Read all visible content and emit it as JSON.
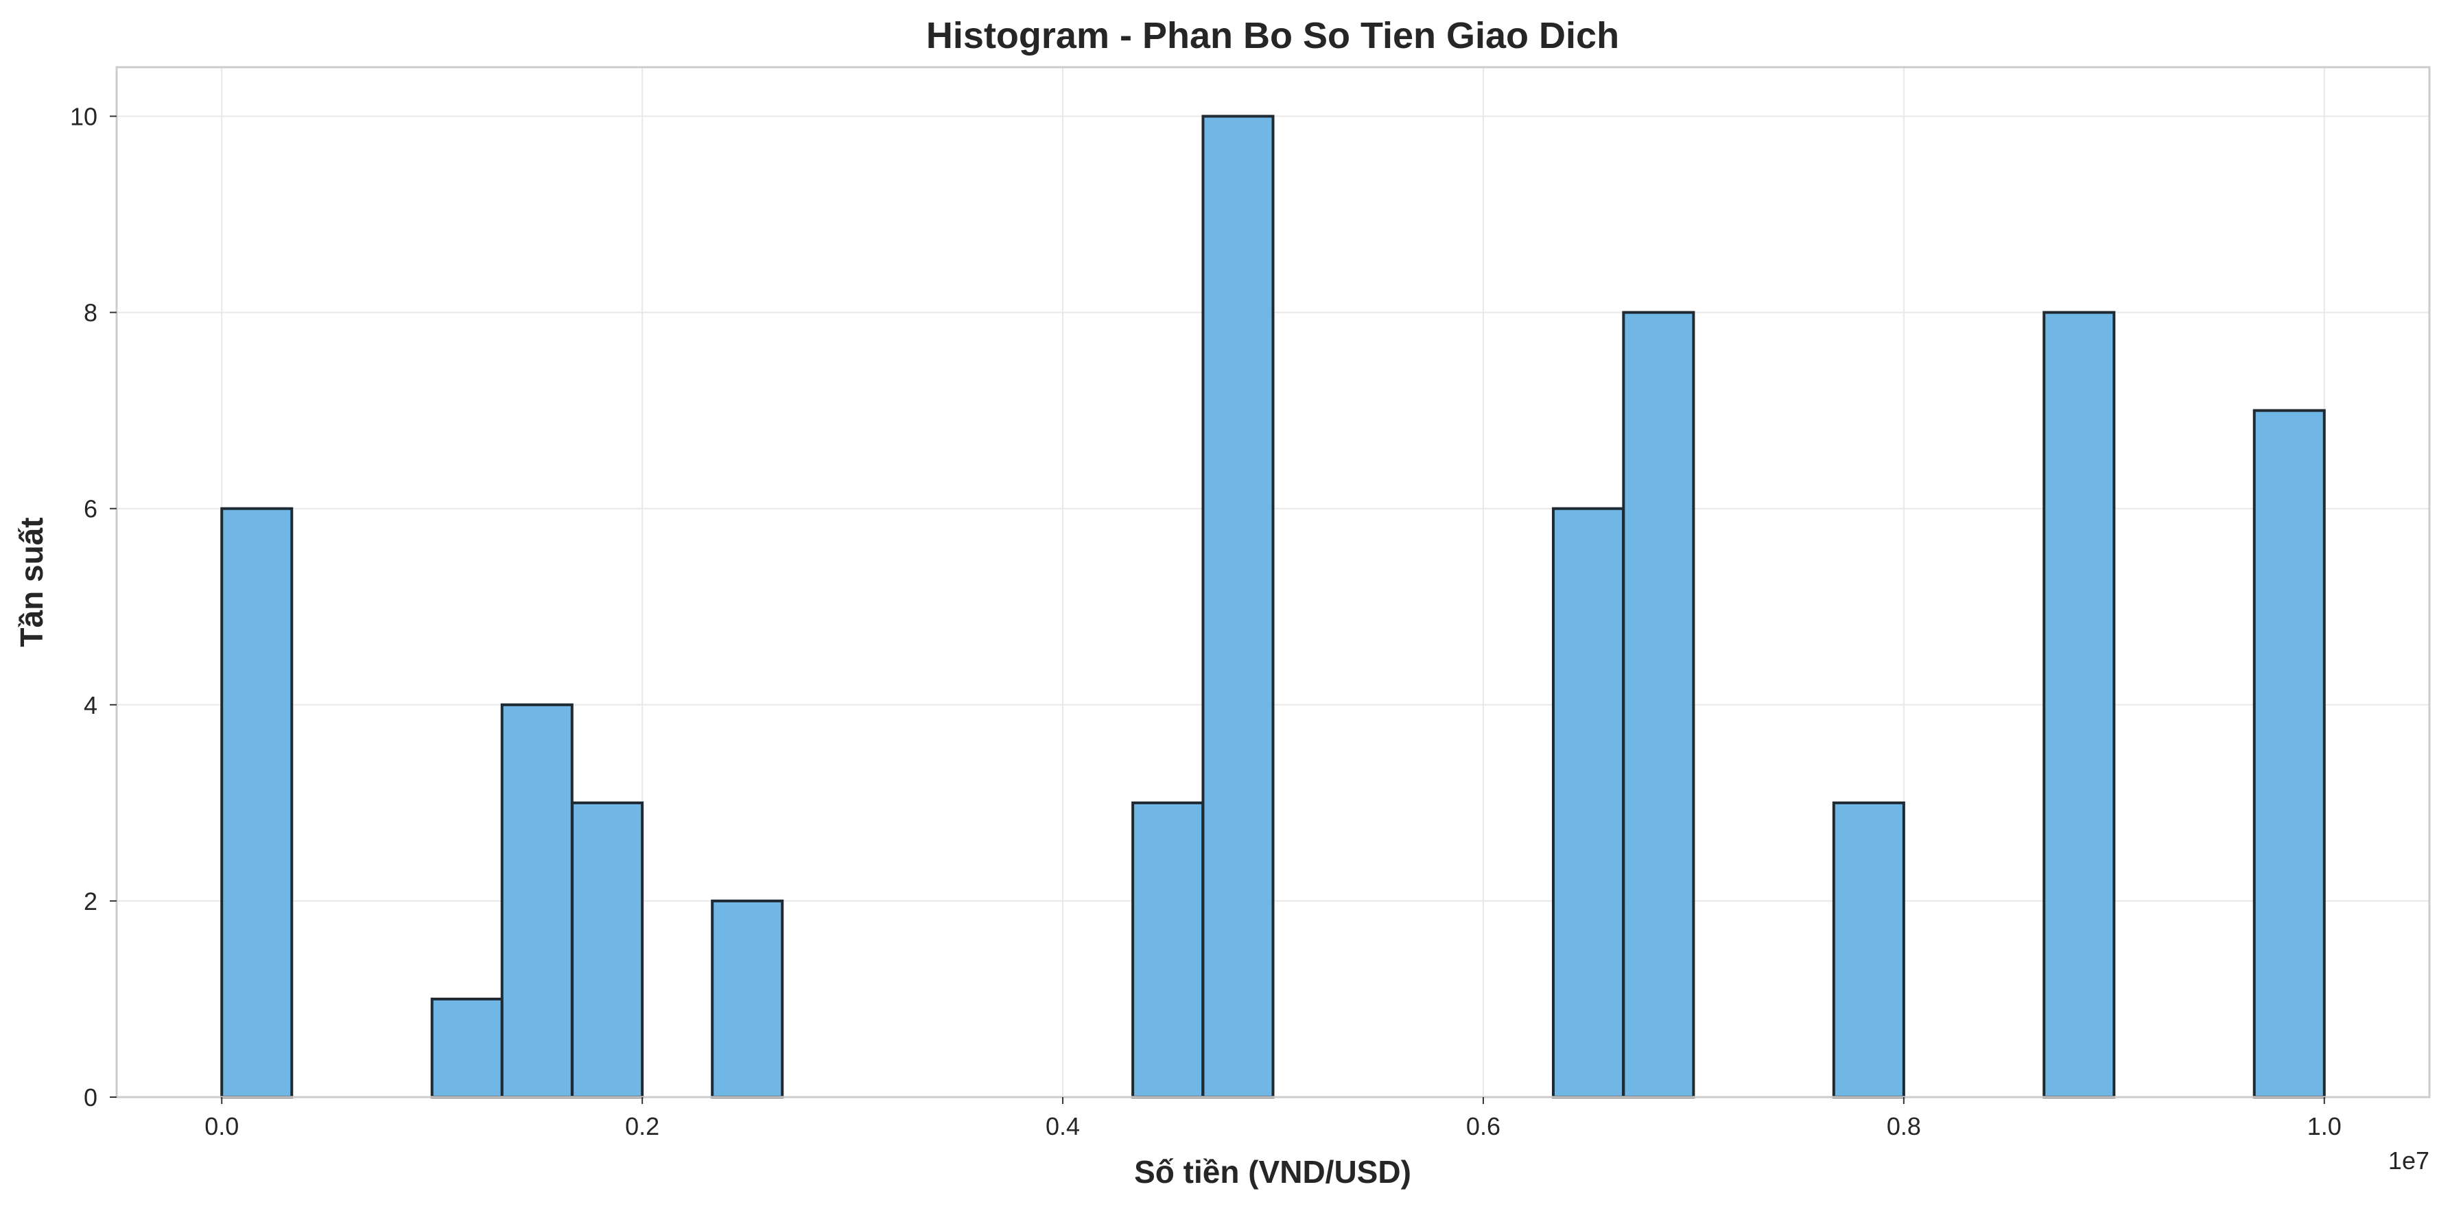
{
  "chart_data": {
    "type": "bar",
    "title": "Histogram - Phan Bo So Tien Giao Dich",
    "xlabel": "Số tiền (VND/USD)",
    "ylabel": "Tần suất",
    "x_offset_label": "1e7",
    "xlim": [
      -0.05,
      1.05
    ],
    "ylim": [
      0,
      10.5
    ],
    "x_ticks": [
      0.0,
      0.2,
      0.4,
      0.6,
      0.8,
      1.0
    ],
    "x_tick_labels": [
      "0.0",
      "0.2",
      "0.4",
      "0.6",
      "0.8",
      "1.0"
    ],
    "y_ticks": [
      0,
      2,
      4,
      6,
      8,
      10
    ],
    "y_tick_labels": [
      "0",
      "2",
      "4",
      "6",
      "8",
      "10"
    ],
    "grid": true,
    "bin_width": 0.0333,
    "bins": [
      {
        "start": 0.0,
        "count": 6
      },
      {
        "start": 0.1,
        "count": 1
      },
      {
        "start": 0.1333,
        "count": 4
      },
      {
        "start": 0.1667,
        "count": 3
      },
      {
        "start": 0.2333,
        "count": 2
      },
      {
        "start": 0.4333,
        "count": 3
      },
      {
        "start": 0.4667,
        "count": 10
      },
      {
        "start": 0.6333,
        "count": 6
      },
      {
        "start": 0.6667,
        "count": 8
      },
      {
        "start": 0.7667,
        "count": 3
      },
      {
        "start": 0.8667,
        "count": 8
      },
      {
        "start": 0.9667,
        "count": 7
      }
    ],
    "colors": {
      "bar_fill": "#5dade2",
      "bar_edge": "#1f2a33",
      "grid": "#e8e8e8",
      "frame": "#cccccc"
    }
  }
}
